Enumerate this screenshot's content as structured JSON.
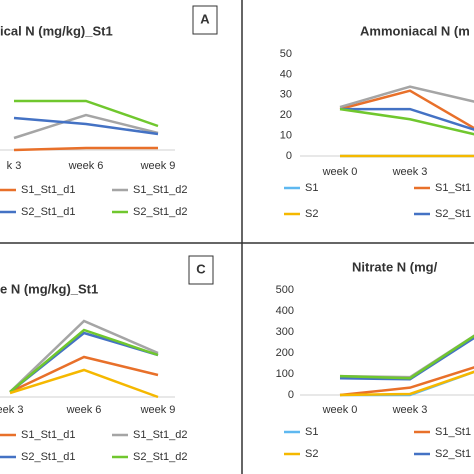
{
  "chart_data": [
    {
      "type": "line",
      "title": "ical N (mg/kg)_St1",
      "panel_label": "A",
      "categories": [
        "k 3",
        "week 6",
        "week 9"
      ],
      "ylim": [
        0,
        100
      ],
      "series": [
        {
          "name": "S1_St1_d1",
          "color": "#e8702a",
          "values": [
            0,
            2,
            2
          ]
        },
        {
          "name": "S1_St1_d2",
          "color": "#a5a5a5",
          "values": [
            12,
            35,
            17
          ]
        },
        {
          "name": "S2_St1_d1",
          "color": "#4472c4",
          "values": [
            32,
            26,
            16
          ]
        },
        {
          "name": "S2_St1_d2",
          "color": "#70c72e",
          "values": [
            49,
            49,
            24
          ]
        }
      ]
    },
    {
      "type": "line",
      "title": "Ammoniacal N (m",
      "categories": [
        "week 0",
        "week 3",
        null
      ],
      "ylim": [
        0,
        50
      ],
      "yticks": [
        0,
        10,
        20,
        30,
        40,
        50
      ],
      "series": [
        {
          "name": "S1",
          "color": "#5eb8f0",
          "values": [
            0,
            0,
            0
          ]
        },
        {
          "name": "S1_St1",
          "color": "#e8702a",
          "values": [
            23,
            32,
            12
          ]
        },
        {
          "name": "S2",
          "color": "#f5b800",
          "values": [
            0,
            0,
            0
          ]
        },
        {
          "name": "S2_St1",
          "color": "#4472c4",
          "values": [
            23,
            23,
            12
          ]
        },
        {
          "color": "#a5a5a5",
          "values": [
            24,
            34,
            26
          ]
        },
        {
          "color": "#70c72e",
          "values": [
            23,
            18,
            10
          ]
        }
      ]
    },
    {
      "type": "line",
      "title": "e N (mg/kg)_St1",
      "panel_label": "C",
      "categories": [
        "eek 3",
        "week 6",
        "week 9"
      ],
      "ylim": [
        0,
        100
      ],
      "series": [
        {
          "name": "S1_St1_d1",
          "color": "#e8702a",
          "values": [
            5,
            40,
            22
          ]
        },
        {
          "name": "S1_St1_d2",
          "color": "#a5a5a5",
          "values": [
            5,
            76,
            44
          ]
        },
        {
          "name": "S2_St1_d1",
          "color": "#4472c4",
          "values": [
            5,
            64,
            42
          ]
        },
        {
          "name": "S2_St1_d2",
          "color": "#70c72e",
          "values": [
            5,
            67,
            42
          ]
        },
        {
          "color": "#f5b800",
          "values": [
            4,
            27,
            0
          ]
        }
      ]
    },
    {
      "type": "line",
      "title": "Nitrate N (mg/",
      "categories": [
        "week 0",
        "week 3",
        null
      ],
      "ylim": [
        0,
        500
      ],
      "yticks": [
        0,
        100,
        200,
        300,
        400,
        500
      ],
      "series": [
        {
          "name": "S1",
          "color": "#5eb8f0",
          "values": [
            0,
            0,
            120
          ]
        },
        {
          "name": "S1_St1",
          "color": "#e8702a",
          "values": [
            0,
            35,
            140
          ]
        },
        {
          "name": "S2",
          "color": "#f5b800",
          "values": [
            0,
            5,
            120
          ]
        },
        {
          "name": "S2_St1",
          "color": "#4472c4",
          "values": [
            80,
            75,
            290
          ]
        },
        {
          "color": "#a5a5a5",
          "values": [
            90,
            85,
            300
          ]
        },
        {
          "color": "#70c72e",
          "values": [
            90,
            80,
            300
          ]
        }
      ]
    }
  ]
}
